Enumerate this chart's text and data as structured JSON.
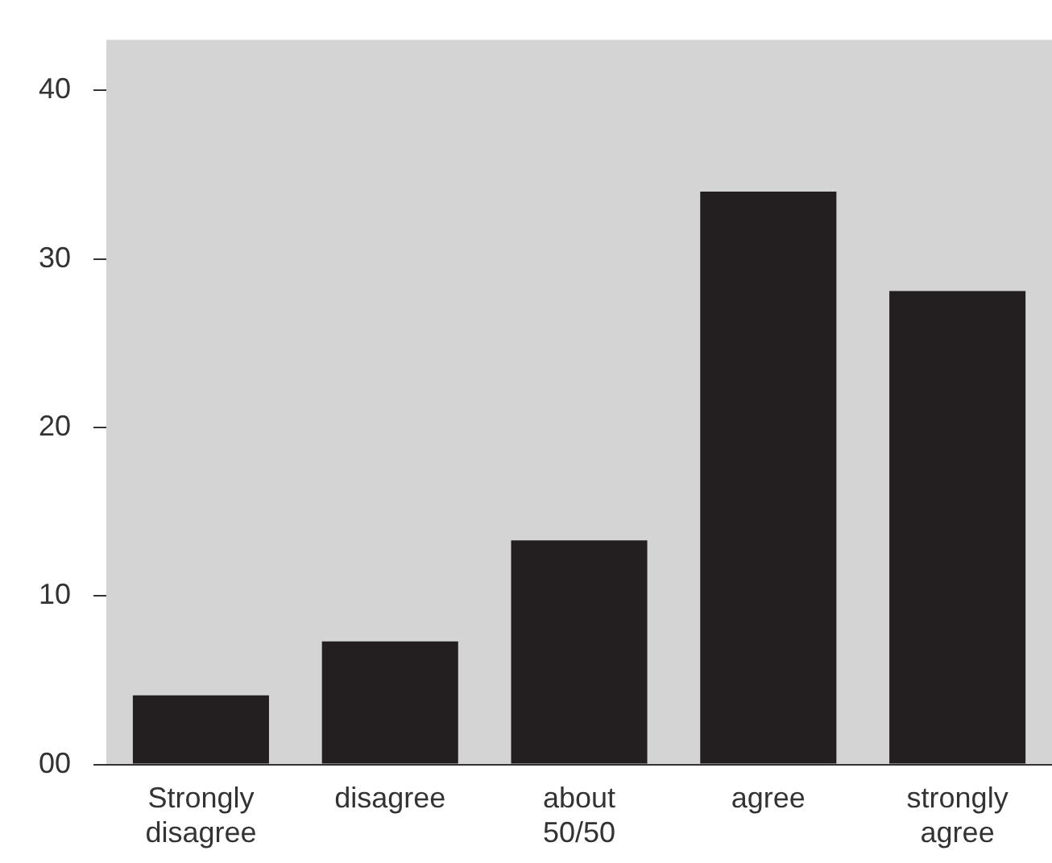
{
  "chart_data": {
    "type": "bar",
    "categories": [
      "Strongly disagree",
      "disagree",
      "about 50/50",
      "agree",
      "strongly agree"
    ],
    "values": [
      4.1,
      7.3,
      13.3,
      34.0,
      28.1
    ],
    "color": "#231f20",
    "ylim": [
      0,
      43
    ],
    "yticks": [
      {
        "value": 0,
        "label": "00"
      },
      10,
      20,
      30,
      40
    ],
    "grid": false,
    "legend": false
  }
}
